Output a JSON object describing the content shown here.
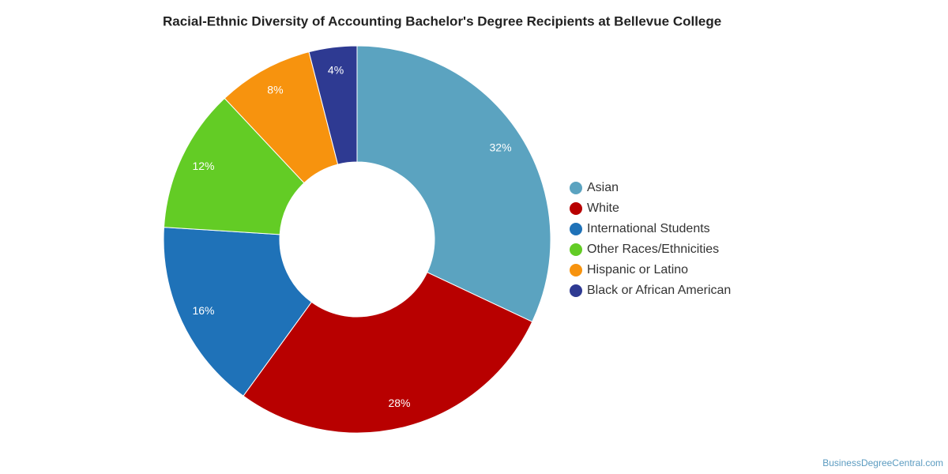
{
  "chart_data": {
    "type": "donut",
    "title": "Racial-Ethnic Diversity of Accounting Bachelor's Degree Recipients at Bellevue College",
    "categories": [
      "Asian",
      "White",
      "International Students",
      "Other Races/Ethnicities",
      "Hispanic or Latino",
      "Black or African American"
    ],
    "values": [
      32,
      28,
      16,
      12,
      8,
      4
    ],
    "value_labels": [
      "32%",
      "28%",
      "16%",
      "12%",
      "8%",
      "4%"
    ],
    "colors": [
      "#5ba3c0",
      "#b80000",
      "#1f72b8",
      "#63cc25",
      "#f7930e",
      "#2e3a92"
    ],
    "legend": "right",
    "credit": "BusinessDegreeCentral.com"
  }
}
